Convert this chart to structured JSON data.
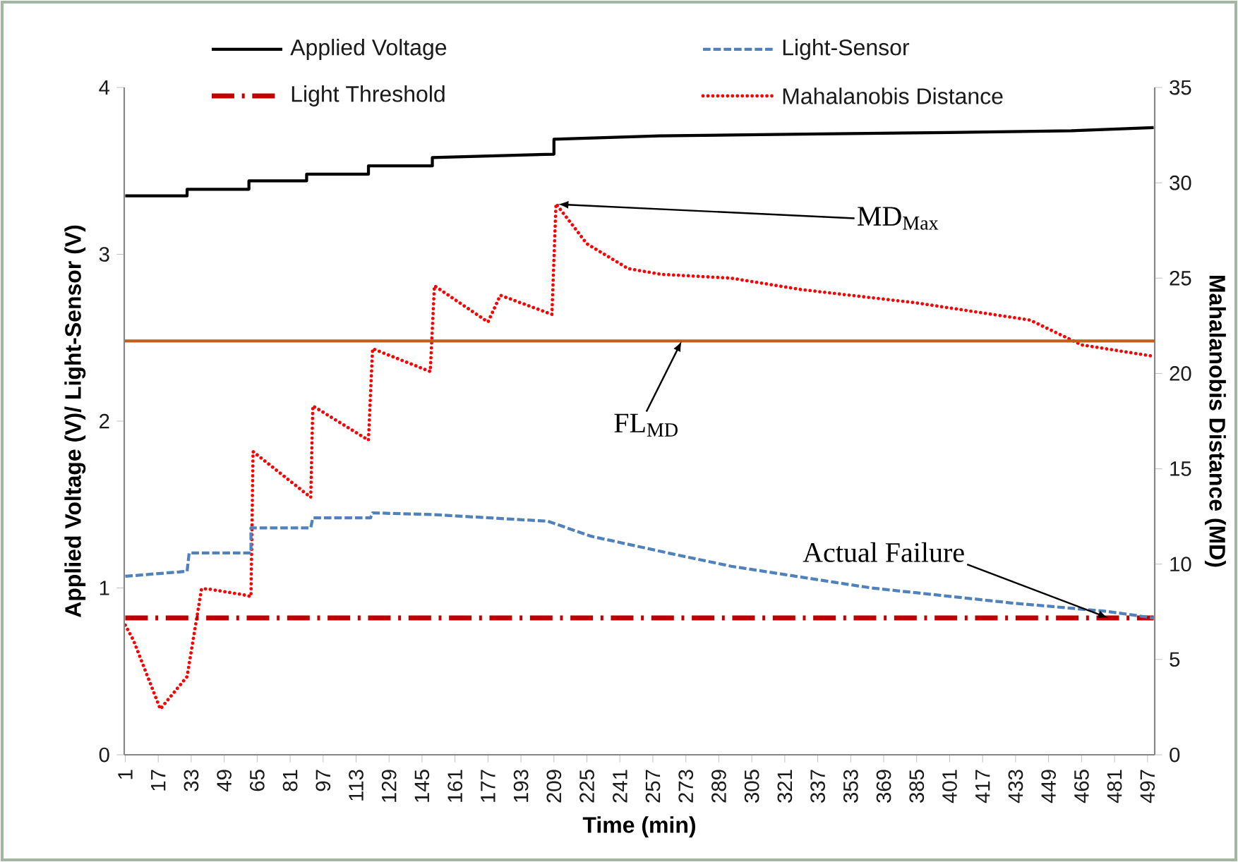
{
  "chart_data": {
    "type": "line",
    "xlabel": "Time (min)",
    "ylabel": "Applied Voltage (V)/ Light-Sensor (V)",
    "y2label": "Mahalanobis Distance (MD)",
    "xlim": [
      0.5,
      500.5
    ],
    "xticks": [
      1,
      17,
      33,
      49,
      65,
      81,
      97,
      113,
      129,
      145,
      161,
      177,
      193,
      209,
      225,
      241,
      257,
      273,
      289,
      305,
      321,
      337,
      353,
      369,
      385,
      401,
      417,
      433,
      449,
      465,
      481,
      497
    ],
    "ylim": [
      0,
      4
    ],
    "yticks": [
      0,
      1,
      2,
      3,
      4
    ],
    "y2lim": [
      0,
      35
    ],
    "y2ticks": [
      0,
      5,
      10,
      15,
      20,
      25,
      30,
      35
    ],
    "legend": "top",
    "series": [
      {
        "name": "Applied Voltage",
        "color": "#000000",
        "line_style": "solid",
        "x": [
          1,
          31,
          31,
          61,
          61,
          89,
          89,
          119,
          119,
          150,
          150,
          209,
          209,
          260,
          330,
          400,
          460,
          500
        ],
        "values": [
          3.35,
          3.35,
          3.39,
          3.39,
          3.44,
          3.44,
          3.48,
          3.48,
          3.53,
          3.53,
          3.58,
          3.6,
          3.69,
          3.71,
          3.72,
          3.73,
          3.74,
          3.76
        ]
      },
      {
        "name": "Light-Sensor",
        "color": "#4f81bd",
        "line_style": "dashed",
        "x": [
          1,
          31,
          32,
          62,
          62,
          91,
          92,
          120,
          121,
          150,
          206,
          227,
          268,
          295,
          363,
          431,
          477,
          500
        ],
        "values": [
          1.07,
          1.1,
          1.21,
          1.21,
          1.36,
          1.36,
          1.42,
          1.42,
          1.45,
          1.44,
          1.4,
          1.31,
          1.2,
          1.13,
          1.0,
          0.91,
          0.86,
          0.82
        ]
      },
      {
        "name": "Light Threshold",
        "color": "#c00000",
        "line_style": "dashdot",
        "x": [
          1,
          500
        ],
        "values": [
          0.82,
          0.82
        ]
      },
      {
        "name": "Mahalanobis Distance",
        "color": "#ff0000",
        "line_style": "dotted",
        "axis": "y2",
        "x": [
          1,
          5,
          18,
          31,
          38,
          41,
          58,
          62,
          63,
          91,
          92,
          119,
          121,
          149,
          151,
          177,
          183,
          208,
          210,
          225,
          245,
          261,
          295,
          329,
          385,
          440,
          465,
          500
        ],
        "values": [
          6.8,
          6.0,
          2.4,
          4.1,
          8.7,
          8.7,
          8.4,
          8.3,
          15.9,
          13.5,
          18.3,
          16.5,
          21.3,
          20.1,
          24.6,
          22.7,
          24.1,
          23.1,
          28.9,
          26.8,
          25.5,
          25.2,
          25.0,
          24.4,
          23.7,
          22.8,
          21.5,
          20.9
        ]
      }
    ],
    "ref_lines": [
      {
        "axis": "y2",
        "value": 21.7,
        "color": "#c0601a"
      }
    ],
    "annotations": [
      {
        "text": "MD$_{Max}$",
        "x": 211,
        "y": 3.3
      },
      {
        "text": "FL$_{MD}$",
        "x": 271,
        "y": 2.48
      },
      {
        "text": "Actual Failure",
        "x": 478,
        "y": 0.82
      }
    ]
  }
}
